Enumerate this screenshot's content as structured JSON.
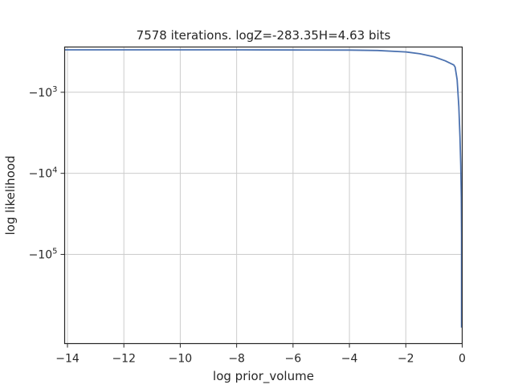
{
  "chart_data": {
    "type": "line",
    "title": "7578 iterations. logZ=-283.35H=4.63 bits",
    "xlabel": "log prior_volume",
    "ylabel": "log likelihood",
    "xlim": [
      -14.1,
      0.0
    ],
    "x_ticks": [
      -14,
      -12,
      -10,
      -8,
      -6,
      -4,
      -2,
      0
    ],
    "x_tick_labels": [
      "−14",
      "−12",
      "−10",
      "−8",
      "−6",
      "−4",
      "−2",
      "0"
    ],
    "y_scale": "symlog (negative values)",
    "y_ticks": [
      -1000,
      -10000,
      -100000
    ],
    "y_tick_labels": [
      {
        "sign": "−",
        "base": "10",
        "exp": "3"
      },
      {
        "sign": "−",
        "base": "10",
        "exp": "4"
      },
      {
        "sign": "−",
        "base": "10",
        "exp": "5"
      }
    ],
    "grid": true,
    "series": [
      {
        "color": "#4c72b0",
        "points": [
          [
            -14.1,
            -300
          ],
          [
            -12,
            -300
          ],
          [
            -10,
            -300
          ],
          [
            -8,
            -300
          ],
          [
            -6,
            -301
          ],
          [
            -4,
            -302
          ],
          [
            -3,
            -305
          ],
          [
            -2,
            -318
          ],
          [
            -1.5,
            -335
          ],
          [
            -1,
            -365
          ],
          [
            -0.6,
            -410
          ],
          [
            -0.3,
            -460
          ],
          [
            -0.25,
            -490
          ],
          [
            -0.18,
            -700
          ],
          [
            -0.12,
            -1500
          ],
          [
            -0.08,
            -3500
          ],
          [
            -0.05,
            -8000
          ],
          [
            -0.03,
            -20000
          ],
          [
            -0.015,
            -60000
          ],
          [
            -0.005,
            -200000
          ],
          [
            0.0,
            -800000
          ]
        ]
      }
    ]
  }
}
